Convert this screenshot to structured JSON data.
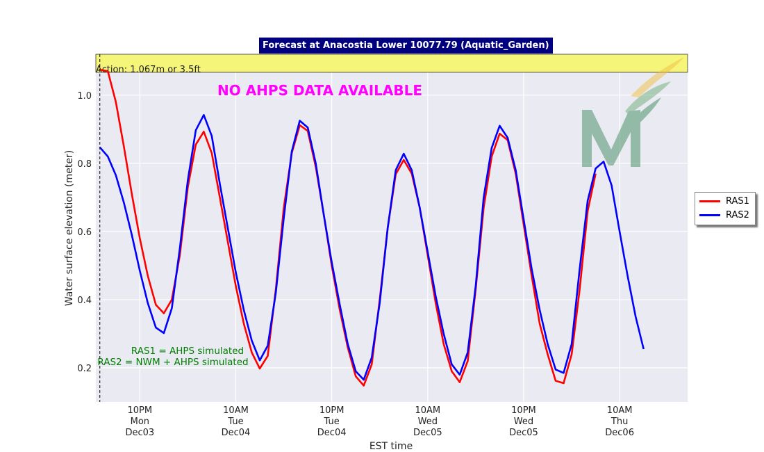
{
  "chart_data": {
    "type": "line",
    "title": "Forecast at Anacostia Lower 10077.79 (Aquatic_Garden)",
    "xlabel": "EST time",
    "ylabel": "Water surface elevation (meter)",
    "x_range_hours": [
      -5.5,
      68.5
    ],
    "ylim": [
      0.1,
      1.12
    ],
    "y_ticks": [
      0.2,
      0.4,
      0.6,
      0.8,
      1.0
    ],
    "y_tick_labels": [
      "0.2",
      "0.4",
      "0.6",
      "0.8",
      "1.0"
    ],
    "x_ticks": [
      {
        "hours": 0,
        "label": [
          "10PM",
          "Mon",
          "Dec03"
        ]
      },
      {
        "hours": 12,
        "label": [
          "10AM",
          "Tue",
          "Dec04"
        ]
      },
      {
        "hours": 24,
        "label": [
          "10PM",
          "Tue",
          "Dec04"
        ]
      },
      {
        "hours": 36,
        "label": [
          "10AM",
          "Wed",
          "Dec05"
        ]
      },
      {
        "hours": 48,
        "label": [
          "10PM",
          "Wed",
          "Dec05"
        ]
      },
      {
        "hours": 60,
        "label": [
          "10AM",
          "Thu",
          "Dec06"
        ]
      }
    ],
    "action_band": {
      "label": "Action: 1.067m or 3.5ft",
      "from": 1.067,
      "to": 1.12,
      "color": "#f5f57a"
    },
    "forecast_start_hours": -5,
    "series": [
      {
        "name": "RAS1",
        "color": "#ff0000",
        "x": [
          -5,
          -4,
          -3,
          -2,
          -1,
          0,
          1,
          2,
          3,
          4,
          5,
          6,
          7,
          8,
          9,
          10,
          11,
          12,
          13,
          14,
          15,
          16,
          17,
          18,
          19,
          20,
          21,
          22,
          23,
          24,
          25,
          26,
          27,
          28,
          29,
          30,
          31,
          32,
          33,
          34,
          35,
          36,
          37,
          38,
          39,
          40,
          41,
          42,
          43,
          44,
          45,
          46,
          47,
          48,
          49,
          50,
          51,
          52,
          53,
          54,
          55,
          56,
          57
        ],
        "y": [
          1.075,
          1.07,
          0.98,
          0.85,
          0.71,
          0.58,
          0.47,
          0.385,
          0.36,
          0.4,
          0.53,
          0.73,
          0.855,
          0.893,
          0.83,
          0.7,
          0.57,
          0.44,
          0.33,
          0.245,
          0.198,
          0.235,
          0.43,
          0.67,
          0.83,
          0.912,
          0.895,
          0.79,
          0.65,
          0.5,
          0.37,
          0.26,
          0.175,
          0.148,
          0.21,
          0.4,
          0.61,
          0.768,
          0.81,
          0.77,
          0.67,
          0.53,
          0.39,
          0.27,
          0.19,
          0.158,
          0.22,
          0.43,
          0.67,
          0.82,
          0.887,
          0.868,
          0.77,
          0.62,
          0.47,
          0.33,
          0.24,
          0.162,
          0.155,
          0.24,
          0.43,
          0.66,
          0.77
        ]
      },
      {
        "name": "RAS2",
        "color": "#0000ff",
        "x": [
          -5,
          -4,
          -3,
          -2,
          -1,
          0,
          1,
          2,
          3,
          4,
          5,
          6,
          7,
          8,
          9,
          10,
          11,
          12,
          13,
          14,
          15,
          16,
          17,
          18,
          19,
          20,
          21,
          22,
          23,
          24,
          25,
          26,
          27,
          28,
          29,
          30,
          31,
          32,
          33,
          34,
          35,
          36,
          37,
          38,
          39,
          40,
          41,
          42,
          43,
          44,
          45,
          46,
          47,
          48,
          49,
          50,
          51,
          52,
          53,
          54,
          55,
          56,
          57,
          58,
          59,
          60,
          61,
          62,
          63
        ],
        "y": [
          0.847,
          0.82,
          0.765,
          0.685,
          0.59,
          0.485,
          0.39,
          0.318,
          0.302,
          0.375,
          0.55,
          0.75,
          0.897,
          0.942,
          0.88,
          0.74,
          0.61,
          0.48,
          0.37,
          0.28,
          0.222,
          0.265,
          0.42,
          0.64,
          0.835,
          0.925,
          0.905,
          0.8,
          0.65,
          0.51,
          0.385,
          0.27,
          0.19,
          0.165,
          0.23,
          0.39,
          0.61,
          0.78,
          0.828,
          0.78,
          0.67,
          0.54,
          0.41,
          0.3,
          0.21,
          0.18,
          0.245,
          0.44,
          0.7,
          0.845,
          0.91,
          0.875,
          0.78,
          0.635,
          0.49,
          0.37,
          0.27,
          0.195,
          0.185,
          0.27,
          0.49,
          0.69,
          0.785,
          0.805,
          0.735,
          0.6,
          0.47,
          0.35,
          0.255
        ]
      }
    ],
    "annotations": {
      "no_data": "NO AHPS DATA AVAILABLE",
      "ras1_note": "RAS1 = AHPS simulated",
      "ras2_note": "RAS2 = NWM + AHPS simulated"
    },
    "grid": true,
    "legend_position": "right"
  }
}
